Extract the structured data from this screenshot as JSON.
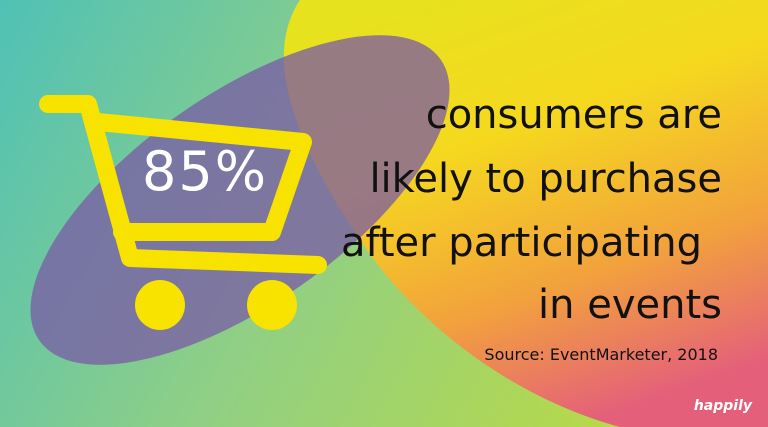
{
  "stat": "85%",
  "statement": [
    "consumers are",
    "likely to purchase",
    "after participating",
    "in events"
  ],
  "source": "Source: EventMarketer, 2018",
  "brand": "happily"
}
